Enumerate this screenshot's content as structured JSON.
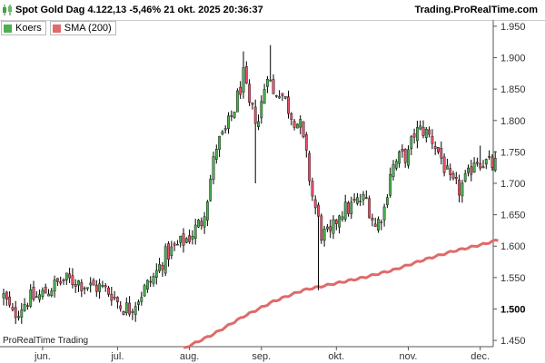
{
  "header": {
    "title": "Spot  Gold Dag 4.122,13 -5,46% 21 okt. 2025 20:36:37",
    "brand": "Trading.ProRealTime.com"
  },
  "legend": {
    "price_label": "Koers",
    "sma_label": "SMA (200)"
  },
  "watermark": "ProRealTime Trading",
  "colors": {
    "up": "#4caf50",
    "down": "#e5526b",
    "sma": "#e06a6a",
    "wick": "#000000"
  },
  "chart_data": {
    "type": "candlestick",
    "title": "Spot  Gold Dag 4.122,13 -5,46% 21 okt. 2025 20:36:37",
    "ylim": [
      1.44,
      1.96
    ],
    "y_ticks": [
      "1.950",
      "1.900",
      "1.850",
      "1.800",
      "1.750",
      "1.700",
      "1.650",
      "1.600",
      "1.550",
      "1.500",
      "1.450"
    ],
    "y_tick_values": [
      1.95,
      1.9,
      1.85,
      1.8,
      1.75,
      1.7,
      1.65,
      1.6,
      1.55,
      1.5,
      1.45
    ],
    "highlight_tick": "1.500",
    "x_ticks": [
      "jun.",
      "jul.",
      "aug.",
      "sep.",
      "okt.",
      "nov.",
      "dec."
    ],
    "x_tick_index": [
      13,
      38,
      62,
      86,
      111,
      135,
      159
    ],
    "grid": false,
    "legend_position": "top-left",
    "series": [
      {
        "name": "Koers",
        "anchors": [
          [
            0,
            1.52
          ],
          [
            3,
            1.49
          ],
          [
            8,
            1.515
          ],
          [
            12,
            1.52
          ],
          [
            16,
            1.535
          ],
          [
            20,
            1.545
          ],
          [
            24,
            1.545
          ],
          [
            29,
            1.535
          ],
          [
            32,
            1.535
          ],
          [
            36,
            1.525
          ],
          [
            39,
            1.505
          ],
          [
            42,
            1.5
          ],
          [
            46,
            1.525
          ],
          [
            50,
            1.55
          ],
          [
            54,
            1.585
          ],
          [
            58,
            1.6
          ],
          [
            62,
            1.615
          ],
          [
            66,
            1.64
          ],
          [
            68,
            1.68
          ],
          [
            71,
            1.76
          ],
          [
            74,
            1.78
          ],
          [
            77,
            1.82
          ],
          [
            80,
            1.87
          ],
          [
            82,
            1.82
          ],
          [
            85,
            1.8
          ],
          [
            88,
            1.88
          ],
          [
            90,
            1.84
          ],
          [
            92,
            1.85
          ],
          [
            96,
            1.81
          ],
          [
            99,
            1.79
          ],
          [
            101,
            1.74
          ],
          [
            103,
            1.68
          ],
          [
            106,
            1.62
          ],
          [
            109,
            1.615
          ],
          [
            112,
            1.655
          ],
          [
            115,
            1.66
          ],
          [
            118,
            1.67
          ],
          [
            121,
            1.675
          ],
          [
            124,
            1.63
          ],
          [
            127,
            1.66
          ],
          [
            129,
            1.72
          ],
          [
            132,
            1.74
          ],
          [
            135,
            1.745
          ],
          [
            137,
            1.78
          ],
          [
            140,
            1.785
          ],
          [
            143,
            1.77
          ],
          [
            146,
            1.74
          ],
          [
            149,
            1.7
          ],
          [
            152,
            1.69
          ],
          [
            155,
            1.71
          ],
          [
            157,
            1.74
          ],
          [
            160,
            1.735
          ],
          [
            162,
            1.73
          ]
        ],
        "extremes": [
          {
            "i": 80,
            "h": 1.91
          },
          {
            "i": 89,
            "h": 1.92
          },
          {
            "i": 84,
            "l": 1.7
          },
          {
            "i": 105,
            "l": 1.53
          },
          {
            "i": 139,
            "h": 1.8
          },
          {
            "i": 159,
            "h": 1.76
          }
        ]
      },
      {
        "name": "SMA (200)",
        "anchors": [
          [
            60,
            1.437
          ],
          [
            70,
            1.46
          ],
          [
            80,
            1.488
          ],
          [
            90,
            1.512
          ],
          [
            100,
            1.53
          ],
          [
            110,
            1.54
          ],
          [
            120,
            1.55
          ],
          [
            130,
            1.562
          ],
          [
            140,
            1.578
          ],
          [
            150,
            1.592
          ],
          [
            160,
            1.603
          ],
          [
            165,
            1.61
          ]
        ]
      }
    ]
  }
}
